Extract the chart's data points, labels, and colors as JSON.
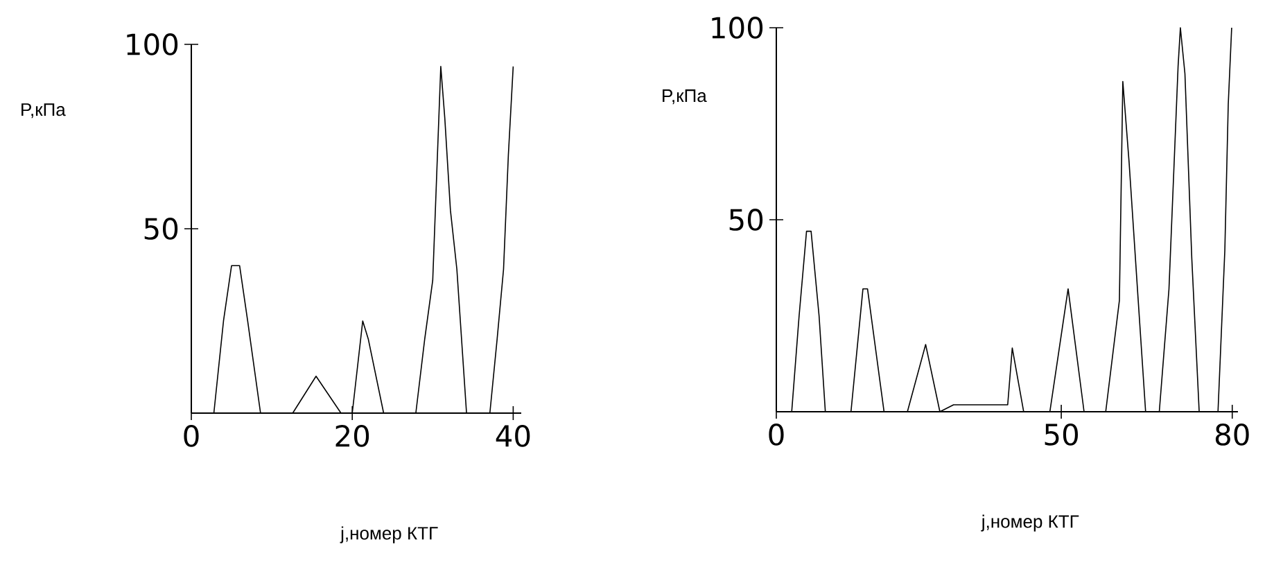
{
  "chart_data": [
    {
      "type": "line",
      "xlabel": "j,номер КТГ",
      "ylabel": "P,кПа",
      "xlim": [
        0,
        41
      ],
      "ylim": [
        0,
        100
      ],
      "xticks": [
        0,
        20,
        40
      ],
      "yticks": [
        50,
        100
      ],
      "series": [
        {
          "color": "#000000",
          "x": [
            2.8,
            4,
            5,
            6,
            7,
            8.6,
            12.6,
            15.5,
            18.6,
            20,
            21.3,
            22,
            23.9,
            27.9,
            29,
            30,
            30.5,
            31,
            31.5,
            32.2,
            33,
            34.2,
            37.1,
            38,
            38.8,
            39.4,
            40
          ],
          "values": [
            0,
            25,
            40,
            40,
            25,
            0,
            0,
            10,
            0,
            0,
            25,
            20,
            0,
            0,
            20,
            36,
            65,
            94,
            80,
            55,
            39,
            0,
            0,
            20,
            39,
            70,
            94
          ]
        }
      ]
    },
    {
      "type": "line",
      "xlabel": "j,номер КТГ",
      "ylabel": "P,кПа",
      "xlim": [
        0,
        81
      ],
      "ylim": [
        0,
        100
      ],
      "xticks": [
        0,
        50,
        80
      ],
      "yticks": [
        50,
        100
      ],
      "series": [
        {
          "color": "#000000",
          "x": [
            2.7,
            4,
            5.3,
            6.1,
            7.5,
            8.6,
            13.1,
            15.2,
            16,
            18.9,
            23,
            26.2,
            28.7,
            31.1,
            40.6,
            41.4,
            43.4,
            48,
            51.2,
            54,
            57.8,
            60.2,
            60.8,
            61.9,
            63.5,
            64.8,
            67.2,
            68.9,
            70.5,
            70.9,
            71.7,
            72.9,
            74.2,
            77.5,
            78.7,
            79.3,
            79.9
          ],
          "values": [
            0,
            25,
            47,
            47,
            25,
            0,
            0,
            32,
            32,
            0,
            0,
            17.5,
            0,
            1.8,
            1.8,
            16.6,
            0,
            0,
            32,
            0,
            0,
            29,
            86,
            65,
            29,
            0,
            0,
            32,
            90,
            100,
            88,
            40,
            0,
            0,
            42,
            80,
            100
          ]
        }
      ]
    }
  ]
}
